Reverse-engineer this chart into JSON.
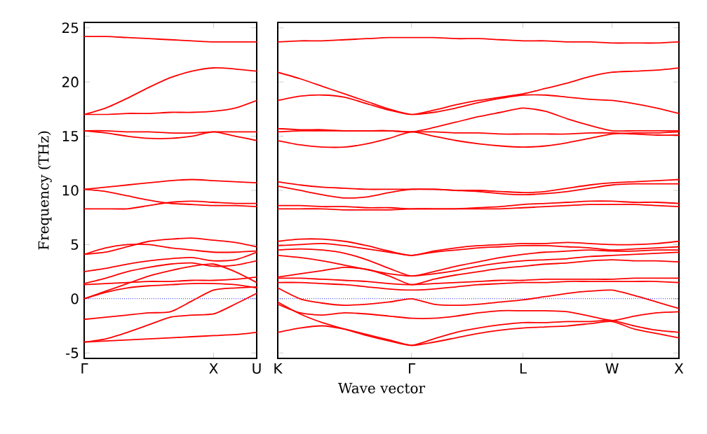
{
  "chart_data": [
    {
      "type": "line",
      "ylabel": "Frequency (THz)",
      "categories": [
        "Γ",
        null,
        null,
        null,
        null,
        null,
        "X",
        null,
        "U"
      ],
      "ylim": [
        -5.5,
        25.5
      ],
      "yticks": [
        -5,
        0,
        5,
        10,
        15,
        20,
        25
      ],
      "ref_lines": [
        {
          "axis": "y",
          "value": 0,
          "color": "#0000ff",
          "line_style": "dotted"
        }
      ],
      "series": [
        {
          "color": "#ff0000",
          "values": [
            24.2,
            24.2,
            24.1,
            24.0,
            23.9,
            23.8,
            23.7,
            23.7,
            23.7
          ]
        },
        {
          "color": "#ff0000",
          "values": [
            17.0,
            17.6,
            18.5,
            19.5,
            20.4,
            21.0,
            21.3,
            21.2,
            21.0
          ]
        },
        {
          "color": "#ff0000",
          "values": [
            17.0,
            17.0,
            17.1,
            17.1,
            17.2,
            17.2,
            17.3,
            17.6,
            18.3
          ]
        },
        {
          "color": "#ff0000",
          "values": [
            15.5,
            15.5,
            15.4,
            15.4,
            15.3,
            15.3,
            15.4,
            15.4,
            15.4
          ]
        },
        {
          "color": "#ff0000",
          "values": [
            15.5,
            15.3,
            15.0,
            14.8,
            14.8,
            15.0,
            15.4,
            15.0,
            14.6
          ]
        },
        {
          "color": "#ff0000",
          "values": [
            10.1,
            10.3,
            10.5,
            10.7,
            10.9,
            11.0,
            10.9,
            10.8,
            10.7
          ]
        },
        {
          "color": "#ff0000",
          "values": [
            10.1,
            9.9,
            9.5,
            9.1,
            8.8,
            8.7,
            8.6,
            8.6,
            8.5
          ]
        },
        {
          "color": "#ff0000",
          "values": [
            8.3,
            8.3,
            8.3,
            8.6,
            8.9,
            9.0,
            8.9,
            8.8,
            8.8
          ]
        },
        {
          "color": "#ff0000",
          "values": [
            4.1,
            4.3,
            4.8,
            5.3,
            5.5,
            5.6,
            5.4,
            5.2,
            4.8
          ]
        },
        {
          "color": "#ff0000",
          "values": [
            4.1,
            4.7,
            5.0,
            5.0,
            4.7,
            4.5,
            4.3,
            4.3,
            4.4
          ]
        },
        {
          "color": "#ff0000",
          "values": [
            2.5,
            2.8,
            3.2,
            3.5,
            3.7,
            3.8,
            3.5,
            3.6,
            4.3
          ]
        },
        {
          "color": "#ff0000",
          "values": [
            1.4,
            1.9,
            2.5,
            2.9,
            3.2,
            3.3,
            3.0,
            3.1,
            3.5
          ]
        },
        {
          "color": "#ff0000",
          "values": [
            1.3,
            1.4,
            1.5,
            1.6,
            1.6,
            1.7,
            1.7,
            1.8,
            2.0
          ]
        },
        {
          "color": "#ff0000",
          "values": [
            0.0,
            0.7,
            1.4,
            2.1,
            2.6,
            3.0,
            3.2,
            2.5,
            1.5
          ]
        },
        {
          "color": "#ff0000",
          "values": [
            0.0,
            0.6,
            1.0,
            1.2,
            1.3,
            1.4,
            1.4,
            1.3,
            1.0
          ]
        },
        {
          "color": "#ff0000",
          "values": [
            -1.9,
            -1.7,
            -1.5,
            -1.3,
            -1.2,
            -0.2,
            0.8,
            1.0,
            1.1
          ]
        },
        {
          "color": "#ff0000",
          "values": [
            -4.0,
            -3.9,
            -3.8,
            -3.7,
            -3.6,
            -3.5,
            -3.4,
            -3.3,
            -3.1
          ]
        },
        {
          "color": "#ff0000",
          "values": [
            -4.0,
            -3.7,
            -3.1,
            -2.4,
            -1.7,
            -1.5,
            -1.4,
            -0.5,
            0.5
          ]
        }
      ]
    },
    {
      "type": "line",
      "xlabel": "Wave vector",
      "tick_labels": "x",
      "categories": [
        "K",
        null,
        null,
        null,
        null,
        null,
        "Γ",
        null,
        null,
        null,
        null,
        "L",
        null,
        null,
        null,
        "W",
        null,
        null,
        "X"
      ],
      "ylim": [
        -5.5,
        25.5
      ],
      "yticks": [
        -5,
        0,
        5,
        10,
        15,
        20,
        25
      ],
      "ref_lines": [
        {
          "axis": "y",
          "value": 0,
          "color": "#0000ff",
          "line_style": "dotted"
        }
      ],
      "series": [
        {
          "color": "#ff0000",
          "values": [
            23.7,
            23.8,
            23.8,
            23.9,
            24.0,
            24.1,
            24.1,
            24.1,
            24.0,
            24.0,
            23.9,
            23.8,
            23.8,
            23.7,
            23.7,
            23.6,
            23.6,
            23.6,
            23.7
          ]
        },
        {
          "color": "#ff0000",
          "values": [
            20.9,
            20.3,
            19.6,
            18.9,
            18.2,
            17.5,
            17.0,
            17.4,
            17.9,
            18.3,
            18.6,
            18.9,
            19.4,
            19.9,
            20.5,
            20.9,
            21.0,
            21.1,
            21.3
          ]
        },
        {
          "color": "#ff0000",
          "values": [
            18.3,
            18.7,
            18.8,
            18.6,
            18.0,
            17.4,
            17.0,
            17.2,
            17.6,
            18.1,
            18.5,
            18.8,
            18.8,
            18.6,
            18.4,
            18.3,
            18.0,
            17.6,
            17.1
          ]
        },
        {
          "color": "#ff0000",
          "values": [
            15.4,
            15.5,
            15.5,
            15.5,
            15.5,
            15.5,
            15.4,
            15.8,
            16.3,
            16.8,
            17.2,
            17.6,
            17.3,
            16.6,
            16.0,
            15.5,
            15.5,
            15.5,
            15.5
          ]
        },
        {
          "color": "#ff0000",
          "values": [
            14.6,
            14.2,
            14.0,
            14.0,
            14.3,
            14.8,
            15.4,
            15.0,
            14.6,
            14.3,
            14.1,
            14.0,
            14.1,
            14.4,
            14.8,
            15.2,
            15.3,
            15.3,
            15.4
          ]
        },
        {
          "color": "#ff0000",
          "values": [
            15.7,
            15.6,
            15.6,
            15.5,
            15.5,
            15.5,
            15.4,
            15.4,
            15.3,
            15.3,
            15.2,
            15.2,
            15.2,
            15.2,
            15.3,
            15.3,
            15.2,
            15.1,
            15.1
          ]
        },
        {
          "color": "#ff0000",
          "values": [
            10.8,
            10.5,
            10.3,
            10.2,
            10.1,
            10.1,
            10.1,
            10.1,
            10.0,
            10.0,
            9.9,
            9.8,
            9.9,
            10.2,
            10.5,
            10.7,
            10.8,
            10.9,
            11.0
          ]
        },
        {
          "color": "#ff0000",
          "values": [
            10.4,
            10.0,
            9.6,
            9.3,
            9.4,
            9.8,
            10.1,
            10.1,
            10.0,
            9.9,
            9.7,
            9.6,
            9.7,
            9.9,
            10.2,
            10.5,
            10.6,
            10.6,
            10.6
          ]
        },
        {
          "color": "#ff0000",
          "values": [
            8.6,
            8.6,
            8.5,
            8.5,
            8.4,
            8.4,
            8.3,
            8.3,
            8.3,
            8.4,
            8.5,
            8.7,
            8.8,
            8.9,
            9.0,
            9.0,
            8.9,
            8.9,
            8.8
          ]
        },
        {
          "color": "#ff0000",
          "values": [
            8.3,
            8.3,
            8.3,
            8.2,
            8.2,
            8.2,
            8.3,
            8.3,
            8.3,
            8.3,
            8.3,
            8.4,
            8.5,
            8.6,
            8.7,
            8.7,
            8.7,
            8.6,
            8.5
          ]
        },
        {
          "color": "#ff0000",
          "values": [
            5.3,
            5.5,
            5.5,
            5.3,
            4.9,
            4.4,
            4.0,
            4.4,
            4.7,
            4.9,
            5.0,
            5.1,
            5.1,
            5.2,
            5.1,
            5.0,
            5.0,
            5.1,
            5.3
          ]
        },
        {
          "color": "#ff0000",
          "values": [
            4.9,
            5.0,
            5.1,
            4.9,
            4.6,
            4.3,
            4.0,
            4.3,
            4.5,
            4.7,
            4.8,
            4.9,
            4.9,
            4.8,
            4.7,
            4.5,
            4.6,
            4.7,
            4.8
          ]
        },
        {
          "color": "#ff0000",
          "values": [
            4.5,
            4.6,
            4.5,
            4.2,
            3.6,
            2.8,
            2.1,
            2.5,
            3.0,
            3.4,
            3.8,
            4.1,
            4.3,
            4.4,
            4.5,
            4.4,
            4.4,
            4.5,
            4.5
          ]
        },
        {
          "color": "#ff0000",
          "values": [
            4.0,
            3.8,
            3.5,
            3.1,
            2.7,
            2.3,
            2.1,
            2.3,
            2.6,
            3.0,
            3.3,
            3.5,
            3.6,
            3.7,
            3.9,
            4.0,
            4.1,
            4.2,
            4.3
          ]
        },
        {
          "color": "#ff0000",
          "values": [
            2.0,
            2.3,
            2.6,
            2.9,
            2.7,
            2.1,
            1.3,
            1.8,
            2.2,
            2.5,
            2.8,
            3.0,
            3.2,
            3.3,
            3.5,
            3.6,
            3.5,
            3.5,
            3.4
          ]
        },
        {
          "color": "#ff0000",
          "values": [
            1.9,
            1.9,
            1.8,
            1.7,
            1.6,
            1.4,
            1.3,
            1.4,
            1.5,
            1.6,
            1.7,
            1.7,
            1.8,
            1.8,
            1.8,
            1.8,
            1.9,
            1.9,
            1.9
          ]
        },
        {
          "color": "#ff0000",
          "values": [
            1.5,
            1.5,
            1.4,
            1.3,
            1.1,
            0.9,
            0.8,
            0.9,
            1.1,
            1.3,
            1.4,
            1.5,
            1.5,
            1.6,
            1.6,
            1.6,
            1.6,
            1.6,
            1.5
          ]
        },
        {
          "color": "#ff0000",
          "values": [
            1.0,
            0.0,
            -0.4,
            -0.6,
            -0.5,
            -0.3,
            0.0,
            -0.5,
            -0.6,
            -0.5,
            -0.3,
            -0.1,
            0.2,
            0.5,
            0.7,
            0.8,
            0.3,
            -0.3,
            -0.9
          ]
        },
        {
          "color": "#ff0000",
          "values": [
            -0.5,
            -1.3,
            -1.5,
            -1.3,
            -1.4,
            -1.6,
            -1.8,
            -1.8,
            -1.6,
            -1.3,
            -1.1,
            -1.1,
            -1.1,
            -1.2,
            -1.6,
            -2.0,
            -1.6,
            -1.3,
            -1.2
          ]
        },
        {
          "color": "#ff0000",
          "values": [
            -3.1,
            -2.7,
            -2.5,
            -2.8,
            -3.3,
            -3.8,
            -4.3,
            -4.0,
            -3.6,
            -3.2,
            -2.9,
            -2.7,
            -2.6,
            -2.5,
            -2.3,
            -2.1,
            -2.8,
            -3.2,
            -3.6
          ]
        },
        {
          "color": "#ff0000",
          "values": [
            -0.3,
            -1.4,
            -2.2,
            -2.8,
            -3.4,
            -3.9,
            -4.3,
            -3.7,
            -3.1,
            -2.7,
            -2.4,
            -2.2,
            -2.2,
            -2.1,
            -2.1,
            -2.0,
            -2.5,
            -2.9,
            -3.1
          ]
        }
      ]
    }
  ]
}
